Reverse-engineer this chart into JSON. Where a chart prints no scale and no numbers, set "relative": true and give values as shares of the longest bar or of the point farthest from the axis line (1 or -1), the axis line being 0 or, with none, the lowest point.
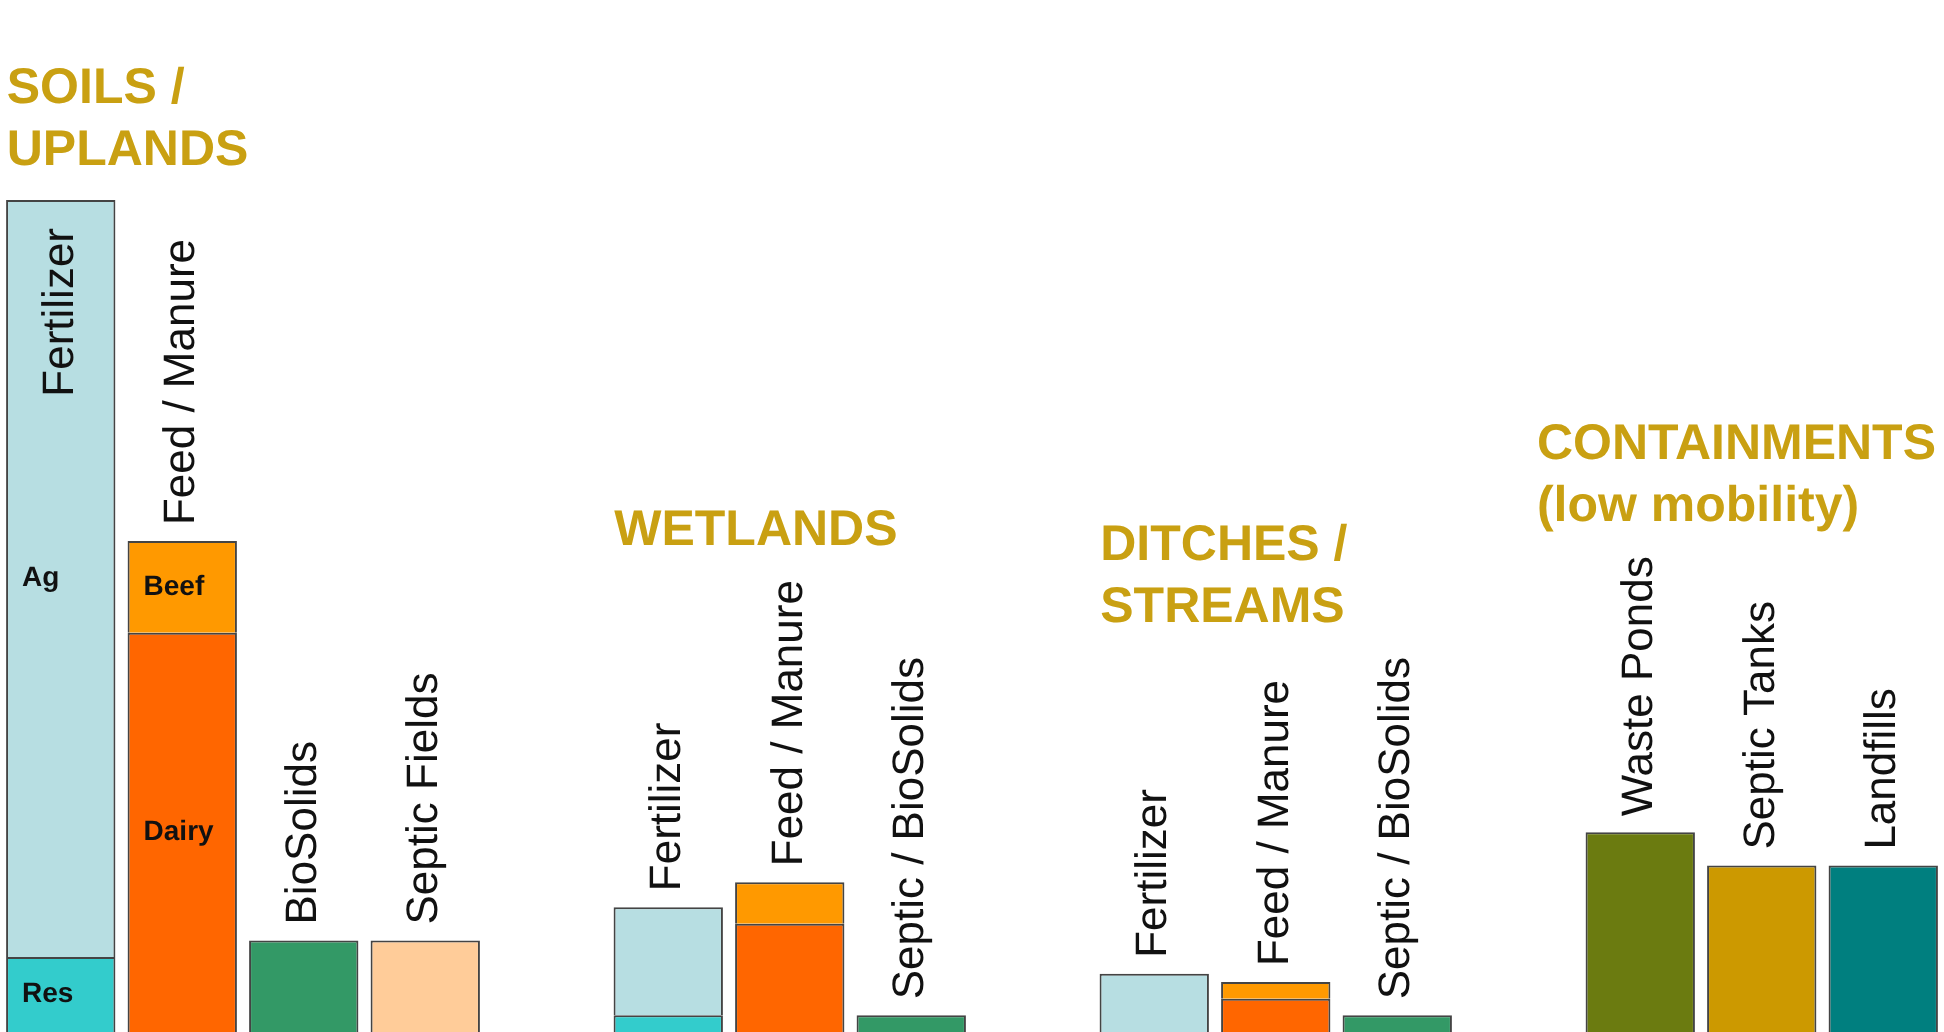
{
  "chart_data": {
    "type": "bar",
    "relative": true,
    "stacked": true,
    "legend": false,
    "categories": [
      "Fertilizer",
      "Feed / Manure",
      "BioSolids",
      "Septic Fields",
      null,
      "Fertilizer",
      "Feed / Manure",
      "Septic / BioSolids",
      null,
      "Fertilizer",
      "Feed / Manure",
      "Septic / BioSolids",
      null,
      "Waste Ponds",
      "Septic Tanks",
      "Landfills"
    ],
    "series": [
      {
        "name": "Res",
        "color": "#33cccc",
        "values": [
          0.09,
          null,
          null,
          null,
          null,
          0.02,
          null,
          null,
          null,
          null,
          null,
          null,
          null,
          null,
          null,
          null
        ]
      },
      {
        "name": "Ag",
        "color": "#b7dee2",
        "values": [
          0.91,
          null,
          null,
          null,
          null,
          0.13,
          null,
          null,
          null,
          0.07,
          null,
          null,
          null,
          null,
          null,
          null
        ]
      },
      {
        "name": "Dairy",
        "color": "#ff6600",
        "values": [
          null,
          0.48,
          null,
          null,
          null,
          null,
          0.13,
          null,
          null,
          null,
          0.04,
          null,
          null,
          null,
          null,
          null
        ]
      },
      {
        "name": "Beef",
        "color": "#ff9900",
        "values": [
          null,
          0.11,
          null,
          null,
          null,
          null,
          0.05,
          null,
          null,
          null,
          0.02,
          null,
          null,
          null,
          null,
          null
        ]
      },
      {
        "color": "#339966",
        "values": [
          null,
          null,
          0.11,
          null,
          null,
          null,
          null,
          0.02,
          null,
          null,
          null,
          0.02,
          null,
          null,
          null,
          null
        ]
      },
      {
        "color": "#ffcc99",
        "values": [
          null,
          null,
          null,
          0.11,
          null,
          null,
          null,
          null,
          null,
          null,
          null,
          null,
          null,
          null,
          null,
          null
        ]
      },
      {
        "color": "#6b7b10",
        "values": [
          null,
          null,
          null,
          null,
          null,
          null,
          null,
          null,
          null,
          null,
          null,
          null,
          null,
          0.24,
          null,
          null
        ]
      },
      {
        "color": "#cc9900",
        "values": [
          null,
          null,
          null,
          null,
          null,
          null,
          null,
          null,
          null,
          null,
          null,
          null,
          null,
          null,
          0.2,
          null
        ]
      },
      {
        "color": "#007f7f",
        "values": [
          null,
          null,
          null,
          null,
          null,
          null,
          null,
          null,
          null,
          null,
          null,
          null,
          null,
          null,
          null,
          0.2
        ]
      }
    ],
    "annotations": [
      "SOILS /\nUPLANDS",
      "WETLANDS",
      "DITCHES /\nSTREAMS",
      "CONTAINMENTS\n(low mobility)"
    ]
  }
}
